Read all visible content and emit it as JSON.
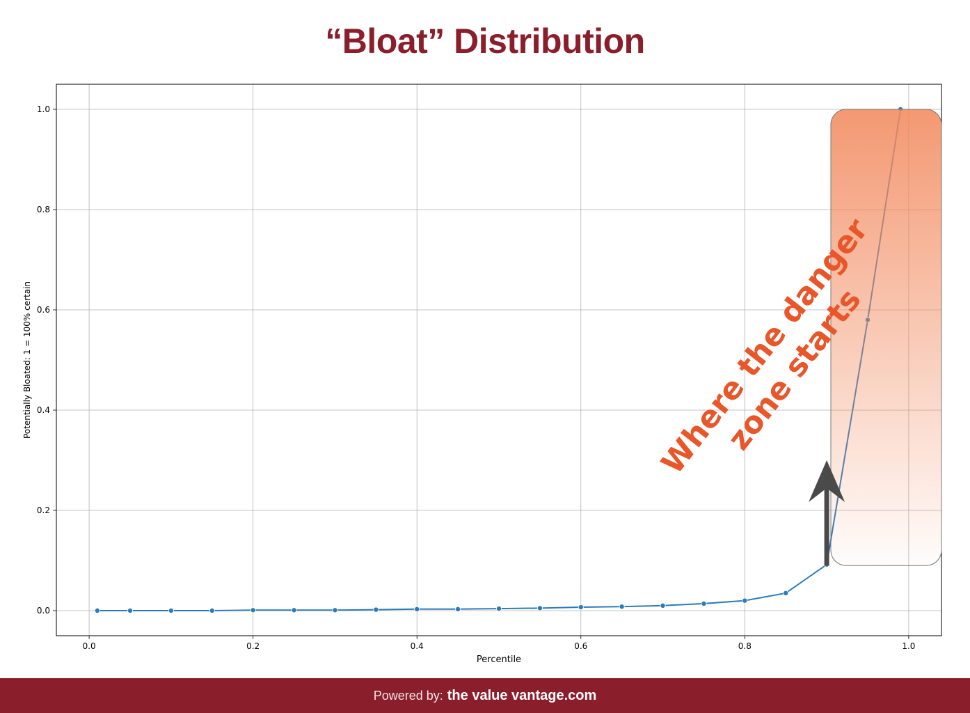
{
  "title": "“Bloat” Distribution",
  "footer": {
    "powered_label": "Powered by:",
    "brand": "the value vantage.com"
  },
  "colors": {
    "title": "#8b1e2b",
    "footer_bg": "#8b1e2b",
    "line": "#2b7bba",
    "annotation_text": "#e8562a",
    "zone_top": "#f28a5e",
    "arrow": "#4a4a4a",
    "grid": "#b0b0b0"
  },
  "chart_data": {
    "type": "line",
    "xlabel": "Percentile",
    "ylabel": "Potentially Bloated: 1 = 100% certain",
    "xlim": [
      -0.04,
      1.04
    ],
    "ylim": [
      -0.05,
      1.05
    ],
    "x_ticks": [
      "0.0",
      "0.2",
      "0.4",
      "0.6",
      "0.8",
      "1.0"
    ],
    "y_ticks": [
      "0.0",
      "0.2",
      "0.4",
      "0.6",
      "0.8",
      "1.0"
    ],
    "grid": true,
    "marker": "circle",
    "x": [
      0.01,
      0.05,
      0.1,
      0.15,
      0.2,
      0.25,
      0.3,
      0.35,
      0.4,
      0.45,
      0.5,
      0.55,
      0.6,
      0.65,
      0.7,
      0.75,
      0.8,
      0.85,
      0.9,
      0.95,
      0.99
    ],
    "y": [
      0.0,
      0.0,
      0.0,
      0.0,
      0.001,
      0.001,
      0.001,
      0.002,
      0.003,
      0.003,
      0.004,
      0.005,
      0.007,
      0.008,
      0.01,
      0.014,
      0.02,
      0.035,
      0.092,
      0.58,
      1.0
    ],
    "annotation": {
      "text_line1": "Where the danger",
      "text_line2": "zone starts",
      "zone_x_range": [
        0.905,
        1.04
      ],
      "zone_y_range": [
        0.09,
        1.0
      ],
      "arrow_from": [
        0.9,
        0.09
      ],
      "arrow_to": [
        0.9,
        0.3
      ]
    }
  }
}
